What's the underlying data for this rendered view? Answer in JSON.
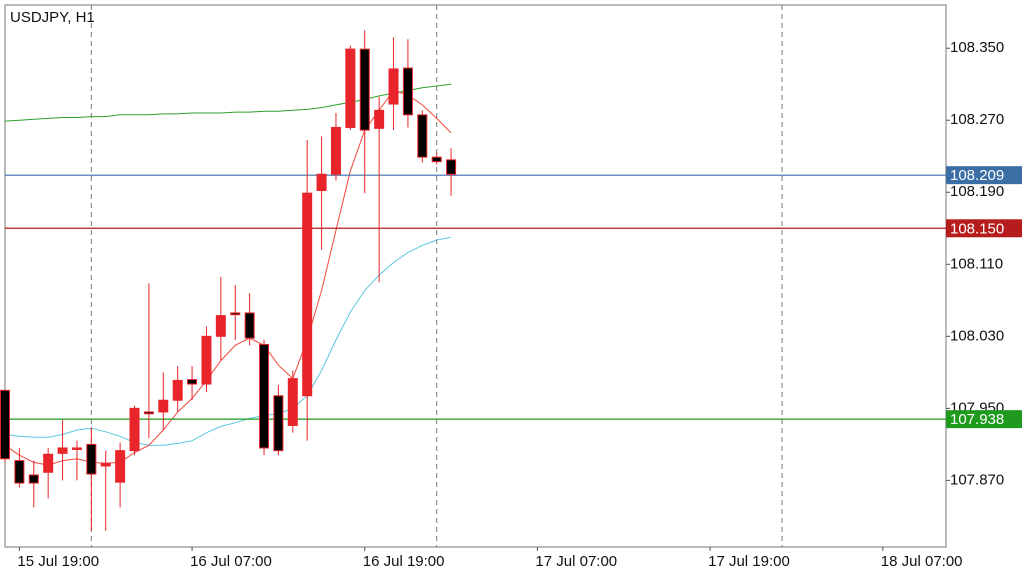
{
  "chart_data": {
    "type": "candlestick",
    "title": "USDJPY, H1",
    "categories": [
      null,
      "15 Jul 19:00",
      null,
      null,
      null,
      null,
      null,
      null,
      null,
      null,
      null,
      null,
      null,
      "16 Jul 07:00",
      null,
      null,
      null,
      null,
      null,
      null,
      null,
      null,
      null,
      null,
      null,
      "16 Jul 19:00",
      null,
      null,
      null,
      null,
      null,
      null,
      null,
      null,
      null,
      null,
      null,
      "17 Jul 07:00",
      null,
      null,
      null,
      null,
      null,
      null,
      null,
      null,
      null,
      null,
      null,
      "17 Jul 19:00",
      null,
      null,
      null,
      null,
      null,
      null,
      null,
      null,
      null,
      null,
      null,
      "18 Jul 07:00"
    ],
    "open": [
      107.97,
      107.892,
      107.876,
      107.879,
      107.9,
      107.905,
      107.91,
      107.886,
      107.868,
      107.903,
      107.946,
      107.946,
      107.959,
      107.982,
      107.977,
      108.03,
      108.056,
      108.056,
      108.021,
      107.964,
      107.931,
      107.964,
      108.192,
      108.21,
      108.262,
      108.349,
      108.261,
      108.288,
      108.328,
      108.276,
      108.229,
      108.226,
      null,
      null,
      null,
      null,
      null,
      null,
      null,
      null,
      null,
      null,
      null,
      null,
      null,
      null,
      null,
      null,
      null,
      null,
      null,
      null,
      null,
      null,
      null,
      null,
      null,
      null,
      null,
      null,
      null,
      null
    ],
    "high": [
      107.97,
      107.906,
      107.892,
      107.906,
      107.937,
      107.914,
      107.929,
      107.903,
      107.912,
      107.953,
      108.089,
      107.99,
      107.997,
      107.997,
      108.041,
      108.096,
      108.087,
      108.078,
      108.026,
      107.976,
      107.992,
      108.248,
      108.252,
      108.278,
      108.353,
      108.37,
      108.296,
      108.362,
      108.36,
      108.281,
      108.234,
      108.239,
      null,
      null,
      null,
      null,
      null,
      null,
      null,
      null,
      null,
      null,
      null,
      null,
      null,
      null,
      null,
      null,
      null,
      null,
      null,
      null,
      null,
      null,
      null,
      null,
      null,
      null,
      null,
      null,
      null,
      null
    ],
    "low": [
      107.89,
      107.862,
      107.84,
      107.85,
      107.87,
      107.87,
      107.814,
      107.814,
      107.84,
      107.898,
      107.917,
      107.926,
      107.946,
      107.959,
      107.968,
      108.003,
      108.026,
      108.02,
      107.898,
      107.898,
      107.923,
      107.914,
      108.126,
      108.203,
      108.259,
      108.189,
      108.09,
      108.259,
      108.262,
      108.223,
      108.221,
      108.186,
      null,
      null,
      null,
      null,
      null,
      null,
      null,
      null,
      null,
      null,
      null,
      null,
      null,
      null,
      null,
      null,
      null,
      null,
      null,
      null,
      null,
      null,
      null,
      null,
      null,
      null,
      null,
      null,
      null,
      null
    ],
    "close": [
      107.894,
      107.867,
      107.867,
      107.899,
      107.906,
      107.906,
      107.877,
      107.889,
      107.903,
      107.95,
      107.944,
      107.959,
      107.981,
      107.977,
      108.03,
      108.053,
      108.054,
      108.028,
      107.906,
      107.903,
      107.983,
      108.189,
      108.21,
      108.262,
      108.349,
      108.259,
      108.281,
      108.327,
      108.276,
      108.229,
      108.224,
      108.21,
      null,
      null,
      null,
      null,
      null,
      null,
      null,
      null,
      null,
      null,
      null,
      null,
      null,
      null,
      null,
      null,
      null,
      null,
      null,
      null,
      null,
      null,
      null,
      null,
      null,
      null,
      null,
      null,
      null,
      null
    ],
    "up_color": "#e8252a",
    "down_color": "#000000",
    "wick_color": "#e8252a",
    "series": [
      {
        "color": "#2ca02c",
        "values": [
          108.269,
          108.27,
          108.271,
          108.272,
          108.273,
          108.273,
          108.274,
          108.274,
          108.276,
          108.276,
          108.276,
          108.277,
          108.277,
          108.278,
          108.278,
          108.278,
          108.279,
          108.279,
          108.28,
          108.28,
          108.281,
          108.282,
          108.284,
          108.287,
          108.29,
          108.293,
          108.297,
          108.3,
          108.303,
          108.306,
          108.308,
          108.31,
          null,
          null,
          null,
          null,
          null,
          null,
          null,
          null,
          null,
          null,
          null,
          null,
          null,
          null,
          null,
          null,
          null,
          null,
          null,
          null,
          null,
          null,
          null,
          null,
          null,
          null,
          null,
          null,
          null,
          null
        ]
      },
      {
        "color": "#5bc8e0",
        "values": [
          107.921,
          107.919,
          107.918,
          107.918,
          107.921,
          107.926,
          107.928,
          107.924,
          107.919,
          107.912,
          107.909,
          107.909,
          107.911,
          107.914,
          107.923,
          107.93,
          107.934,
          107.939,
          107.942,
          107.944,
          107.95,
          107.964,
          107.992,
          108.026,
          108.057,
          108.081,
          108.098,
          108.112,
          108.123,
          108.131,
          108.137,
          108.14,
          null,
          null,
          null,
          null,
          null,
          null,
          null,
          null,
          null,
          null,
          null,
          null,
          null,
          null,
          null,
          null,
          null,
          null,
          null,
          null,
          null,
          null,
          null,
          null,
          null,
          null,
          null,
          null,
          null,
          null
        ]
      },
      {
        "color": "#f0463c",
        "values": [
          107.909,
          107.898,
          107.89,
          107.887,
          107.892,
          107.894,
          107.89,
          107.889,
          107.89,
          107.901,
          107.909,
          107.926,
          107.946,
          107.961,
          107.981,
          108.003,
          108.02,
          108.028,
          108.02,
          107.998,
          107.983,
          108.026,
          108.081,
          108.148,
          108.214,
          108.259,
          108.281,
          108.303,
          108.298,
          108.287,
          108.272,
          108.256,
          null,
          null,
          null,
          null,
          null,
          null,
          null,
          null,
          null,
          null,
          null,
          null,
          null,
          null,
          null,
          null,
          null,
          null,
          null,
          null,
          null,
          null,
          null,
          null,
          null,
          null,
          null,
          null,
          null,
          null
        ]
      }
    ],
    "hlines": [
      {
        "value": 108.209,
        "color": "#3a6ea5"
      },
      {
        "value": 108.15,
        "label": "108.150",
        "color": "#b71c1c"
      },
      {
        "value": 107.938,
        "color": "#1f9a1f"
      }
    ],
    "ylim": [
      107.796,
      108.398
    ],
    "yticks": [
      {
        "value": 108.35,
        "label": "108.350"
      },
      {
        "value": 108.27,
        "label": "108.270"
      },
      {
        "value": 108.19,
        "label": "108.190"
      },
      {
        "value": 108.11,
        "label": "108.110"
      },
      {
        "value": 108.03,
        "label": "108.030"
      },
      {
        "value": 107.95,
        "label": "107.950"
      },
      {
        "value": 107.87,
        "label": "107.870"
      }
    ]
  }
}
